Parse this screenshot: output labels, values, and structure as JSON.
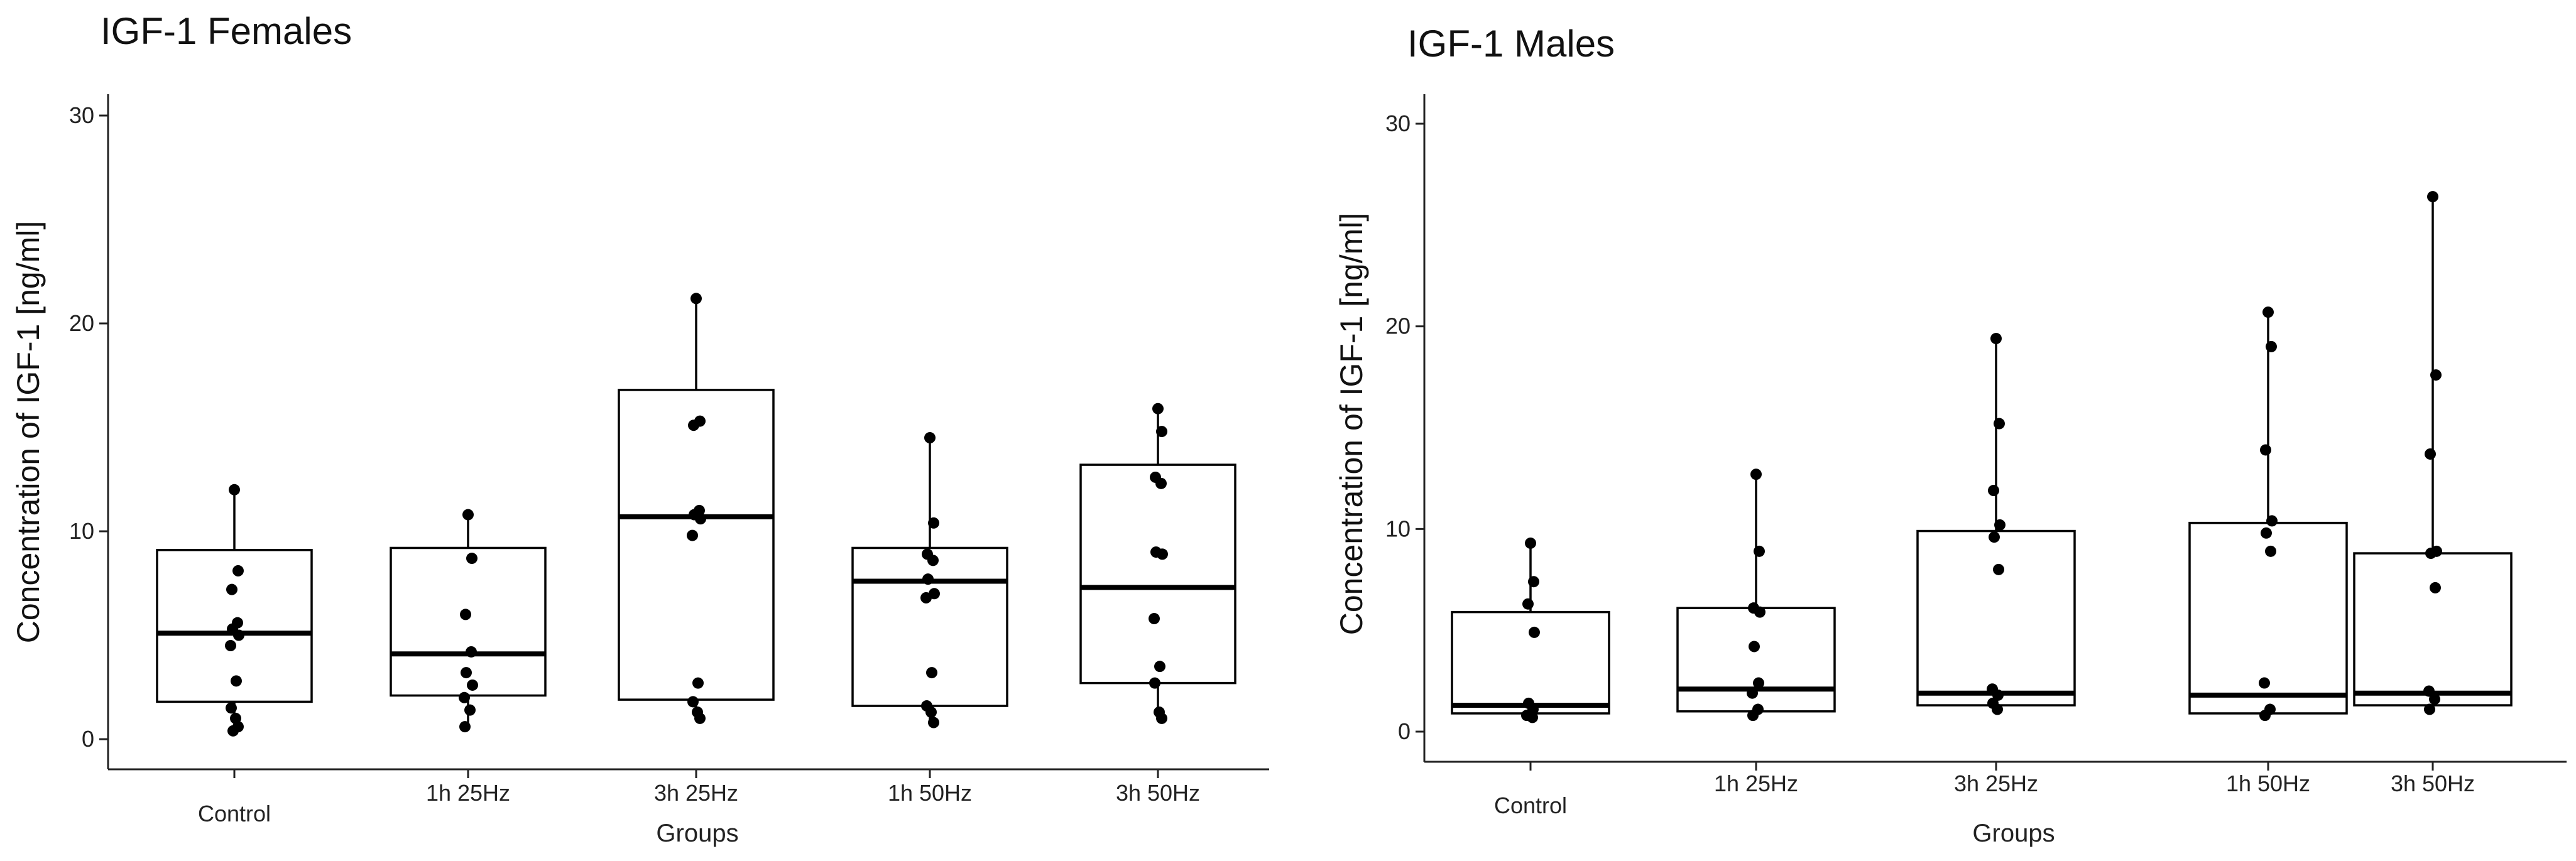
{
  "chart_data": [
    {
      "type": "box",
      "title": "IGF-1  Females",
      "xlabel": "Groups",
      "ylabel": "Concentration of IGF-1 [ng/ml]",
      "ylim": [
        -1.5,
        30.8
      ],
      "yticks": [
        0,
        10,
        20,
        30
      ],
      "categories": [
        "Control",
        "1h 25Hz",
        "3h 25Hz",
        "1h 50Hz",
        "3h 50Hz"
      ],
      "boxes": [
        {
          "group": "Control",
          "min": 0.4,
          "q1": 1.8,
          "median": 5.1,
          "q3": 9.1,
          "max": 12.0,
          "points": [
            12.0,
            8.1,
            7.2,
            5.6,
            5.3,
            5.0,
            4.5,
            2.8,
            1.5,
            1.0,
            0.6,
            0.4
          ]
        },
        {
          "group": "1h 25Hz",
          "min": 0.6,
          "q1": 2.1,
          "median": 4.1,
          "q3": 9.2,
          "max": 10.8,
          "points": [
            10.8,
            8.7,
            6.0,
            4.2,
            3.2,
            2.6,
            2.0,
            1.4,
            0.6
          ]
        },
        {
          "group": "3h 25Hz",
          "min": 1.0,
          "q1": 1.9,
          "median": 10.7,
          "q3": 16.8,
          "max": 21.2,
          "points": [
            21.2,
            15.3,
            15.1,
            11.0,
            10.8,
            10.6,
            9.8,
            2.7,
            1.8,
            1.3,
            1.0
          ]
        },
        {
          "group": "1h 50Hz",
          "min": 0.8,
          "q1": 1.6,
          "median": 7.6,
          "q3": 9.2,
          "max": 14.5,
          "points": [
            14.5,
            10.4,
            8.9,
            8.6,
            7.7,
            7.0,
            6.8,
            3.2,
            1.6,
            1.3,
            0.8
          ]
        },
        {
          "group": "3h 50Hz",
          "min": 0.9,
          "q1": 2.7,
          "median": 7.3,
          "q3": 13.2,
          "max": 15.9,
          "points": [
            15.9,
            14.8,
            12.6,
            12.3,
            9.0,
            8.9,
            5.8,
            3.5,
            2.7,
            1.3,
            1.0
          ]
        }
      ]
    },
    {
      "type": "box",
      "title": "IGF-1   Males",
      "xlabel": "Groups",
      "ylabel": "Concentration of IGF-1 [ng/ml]",
      "ylim": [
        -1.5,
        30.8
      ],
      "yticks": [
        0,
        10,
        20,
        30
      ],
      "categories": [
        "Control",
        "1h 25Hz",
        "3h 25Hz",
        "1h 50Hz",
        "3h 50Hz"
      ],
      "boxes": [
        {
          "group": "Control",
          "min": 0.7,
          "q1": 0.9,
          "median": 1.3,
          "q3": 5.9,
          "max": 9.3,
          "points": [
            9.3,
            7.4,
            6.3,
            4.9,
            1.4,
            1.1,
            0.8,
            0.7
          ]
        },
        {
          "group": "1h 25Hz",
          "min": 0.7,
          "q1": 1.0,
          "median": 2.1,
          "q3": 6.1,
          "max": 12.7,
          "points": [
            12.7,
            8.9,
            6.1,
            5.9,
            4.2,
            2.4,
            1.9,
            1.1,
            0.8
          ]
        },
        {
          "group": "3h 25Hz",
          "min": 1.1,
          "q1": 1.3,
          "median": 1.9,
          "q3": 9.9,
          "max": 19.4,
          "points": [
            19.4,
            15.2,
            11.9,
            10.2,
            9.6,
            8.0,
            2.1,
            1.8,
            1.4,
            1.1
          ]
        },
        {
          "group": "1h 50Hz",
          "min": 0.7,
          "q1": 0.9,
          "median": 1.8,
          "q3": 10.3,
          "max": 20.7,
          "points": [
            20.7,
            19.0,
            13.9,
            10.4,
            9.8,
            8.9,
            2.4,
            1.1,
            0.8
          ]
        },
        {
          "group": "3h 50Hz",
          "min": 1.0,
          "q1": 1.3,
          "median": 1.9,
          "q3": 8.8,
          "max": 26.4,
          "points": [
            26.4,
            17.6,
            13.7,
            8.9,
            8.8,
            7.1,
            2.0,
            1.6,
            1.1
          ]
        }
      ]
    }
  ]
}
